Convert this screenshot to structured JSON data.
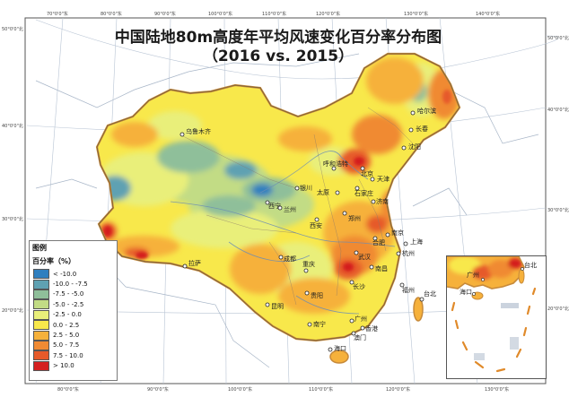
{
  "title": {
    "line1": "中国陆地80m高度年平均风速变化百分率分布图",
    "line2": "（2016 vs. 2015）"
  },
  "legend": {
    "title": "图例",
    "subtitle": "百分率（%）",
    "items": [
      {
        "label": "< -10.0",
        "color": "#2f7fbf"
      },
      {
        "label": "-10.0 - -7.5",
        "color": "#5fa1b2"
      },
      {
        "label": "-7.5 - -5.0",
        "color": "#8fbf9a"
      },
      {
        "label": "-5.0 - -2.5",
        "color": "#c2dc85"
      },
      {
        "label": "-2.5 - 0.0",
        "color": "#e9ef7a"
      },
      {
        "label": "0.0 - 2.5",
        "color": "#f8e84b"
      },
      {
        "label": "2.5 - 5.0",
        "color": "#f6b13b"
      },
      {
        "label": "5.0 - 7.5",
        "color": "#f08a33"
      },
      {
        "label": "7.5 - 10.0",
        "color": "#e65a2a"
      },
      {
        "label": "> 10.0",
        "color": "#d41f1f"
      }
    ]
  },
  "cities": [
    {
      "name": "乌鲁木齐",
      "color": "#222222"
    },
    {
      "name": "哈尔滨",
      "color": "#222222"
    },
    {
      "name": "长春",
      "color": "#222222"
    },
    {
      "name": "沈阳",
      "color": "#222222"
    },
    {
      "name": "呼和浩特",
      "color": "#222222"
    },
    {
      "name": "北京",
      "color": "#222222"
    },
    {
      "name": "天津",
      "color": "#222222"
    },
    {
      "name": "银川",
      "color": "#222222"
    },
    {
      "name": "太原",
      "color": "#222222"
    },
    {
      "name": "石家庄",
      "color": "#222222"
    },
    {
      "name": "济南",
      "color": "#222222"
    },
    {
      "name": "西宁",
      "color": "#222222"
    },
    {
      "name": "兰州",
      "color": "#222222"
    },
    {
      "name": "西安",
      "color": "#222222"
    },
    {
      "name": "郑州",
      "color": "#222222"
    },
    {
      "name": "合肥",
      "color": "#222222"
    },
    {
      "name": "南京",
      "color": "#222222"
    },
    {
      "name": "上海",
      "color": "#222222"
    },
    {
      "name": "杭州",
      "color": "#222222"
    },
    {
      "name": "武汉",
      "color": "#222222"
    },
    {
      "name": "成都",
      "color": "#222222"
    },
    {
      "name": "重庆",
      "color": "#222222"
    },
    {
      "name": "长沙",
      "color": "#222222"
    },
    {
      "name": "南昌",
      "color": "#222222"
    },
    {
      "name": "福州",
      "color": "#222222"
    },
    {
      "name": "台北",
      "color": "#222222"
    },
    {
      "name": "拉萨",
      "color": "#222222"
    },
    {
      "name": "贵阳",
      "color": "#222222"
    },
    {
      "name": "昆明",
      "color": "#222222"
    },
    {
      "name": "南宁",
      "color": "#222222"
    },
    {
      "name": "广州",
      "color": "#222222"
    },
    {
      "name": "香港",
      "color": "#222222"
    },
    {
      "name": "澳门",
      "color": "#222222"
    },
    {
      "name": "海口",
      "color": "#222222"
    }
  ],
  "inset_labels": [
    "广州",
    "台北",
    "海口"
  ],
  "graticule": {
    "top": [
      "70°0'0\"东",
      "80°0'0\"东",
      "90°0'0\"东",
      "100°0'0\"东",
      "110°0'0\"东",
      "120°0'0\"东",
      "130°0'0\"东",
      "140°0'0\"东"
    ],
    "bottom": [
      "80°0'0\"东",
      "90°0'0\"东",
      "100°0'0\"东",
      "110°0'0\"东",
      "120°0'0\"东",
      "130°0'0\"东"
    ],
    "left": [
      "50°0'0\"北",
      "40°0'0\"北",
      "30°0'0\"北",
      "20°0'0\"北"
    ],
    "right": [
      "50°0'0\"北",
      "40°0'0\"北",
      "30°0'0\"北",
      "20°0'0\"北"
    ]
  }
}
